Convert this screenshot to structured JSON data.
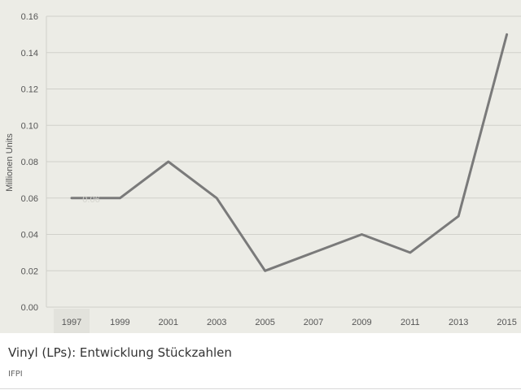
{
  "chart_data": {
    "type": "line",
    "title": "Vinyl (LPs): Entwicklung Stückzahlen",
    "source": "IFPI",
    "ylabel": "Millionen Units",
    "xlabel": "",
    "x": [
      "1997",
      "1999",
      "2001",
      "2003",
      "2005",
      "2007",
      "2009",
      "2011",
      "2013",
      "2015"
    ],
    "x_ticks": [
      "1997",
      "1999",
      "2001",
      "2003",
      "2005",
      "2007",
      "2009",
      "2011",
      "2013",
      "2015"
    ],
    "y_ticks": [
      "0.00",
      "0.02",
      "0.04",
      "0.06",
      "0.08",
      "0.10",
      "0.12",
      "0.14",
      "0.16"
    ],
    "ylim": [
      0,
      0.16
    ],
    "grid": true,
    "series": [
      {
        "values": [
          0.06,
          0.06,
          0.08,
          0.06,
          0.02,
          0.03,
          0.04,
          0.03,
          0.05,
          0.15
        ]
      }
    ],
    "tooltip": {
      "text": "0.06",
      "index": 0
    },
    "highlight_tick_index": 0,
    "colors": {
      "line": "#7a7a7a",
      "grid": "#d0d0ca",
      "background": "#ecece6"
    }
  }
}
